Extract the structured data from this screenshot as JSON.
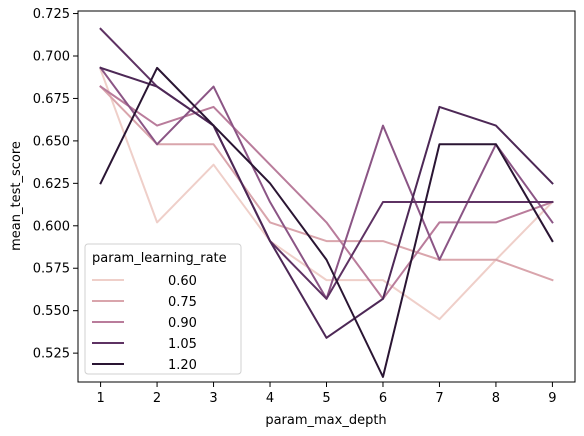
{
  "chart_data": {
    "type": "line",
    "xlabel": "param_max_depth",
    "ylabel": "mean_test_score",
    "x": [
      1,
      2,
      3,
      4,
      5,
      6,
      7,
      8,
      9
    ],
    "xticks": [
      "1",
      "2",
      "3",
      "4",
      "5",
      "6",
      "7",
      "8",
      "9"
    ],
    "yticks": [
      "0.525",
      "0.550",
      "0.575",
      "0.600",
      "0.625",
      "0.650",
      "0.675",
      "0.700",
      "0.725"
    ],
    "ytick_values": [
      0.525,
      0.55,
      0.575,
      0.6,
      0.625,
      0.65,
      0.675,
      0.7,
      0.725
    ],
    "xlim": [
      0.6,
      9.4
    ],
    "ylim": [
      0.508,
      0.7265
    ],
    "grid": false,
    "legend": {
      "title": "param_learning_rate",
      "position": "lower-left"
    },
    "series": [
      {
        "name": "0.60",
        "color": "#efcfc9",
        "values": [
          0.692,
          0.602,
          0.636,
          0.591,
          0.568,
          0.568,
          0.545,
          0.58,
          0.614
        ]
      },
      {
        "name": "0.75",
        "color": "#d9a5ac",
        "values": [
          0.682,
          0.648,
          0.648,
          0.602,
          0.591,
          0.591,
          0.58,
          0.58,
          0.568
        ]
      },
      {
        "name": "0.90",
        "color": "#b97c9b",
        "values": [
          0.682,
          0.659,
          0.67,
          0.636,
          0.602,
          0.557,
          0.602,
          0.602,
          0.614
        ]
      },
      {
        "name": "1.05",
        "color": "#8b5585",
        "values": [
          0.693,
          0.648,
          0.682,
          0.614,
          0.557,
          0.659,
          0.58,
          0.648,
          0.602
        ]
      },
      {
        "name": "1.05",
        "color": "#5e3263",
        "values": [
          0.716,
          0.682,
          0.659,
          0.591,
          0.557,
          0.614,
          0.614,
          0.614,
          0.614
        ]
      },
      {
        "name": "1.05",
        "color": "#4d2856",
        "values": [
          0.693,
          0.682,
          0.659,
          0.591,
          0.534,
          0.557,
          0.67,
          0.659,
          0.625
        ]
      },
      {
        "name": "1.20",
        "color": "#2a1533",
        "values": [
          0.625,
          0.693,
          0.659,
          0.625,
          0.58,
          0.511,
          0.648,
          0.648,
          0.591
        ]
      }
    ],
    "legend_entries": [
      {
        "label": "0.60",
        "color": "#efcfc9"
      },
      {
        "label": "0.75",
        "color": "#d9a5ac"
      },
      {
        "label": "0.90",
        "color": "#b97c9b"
      },
      {
        "label": "1.05",
        "color": "#5e3263"
      },
      {
        "label": "1.20",
        "color": "#2a1533"
      }
    ]
  }
}
